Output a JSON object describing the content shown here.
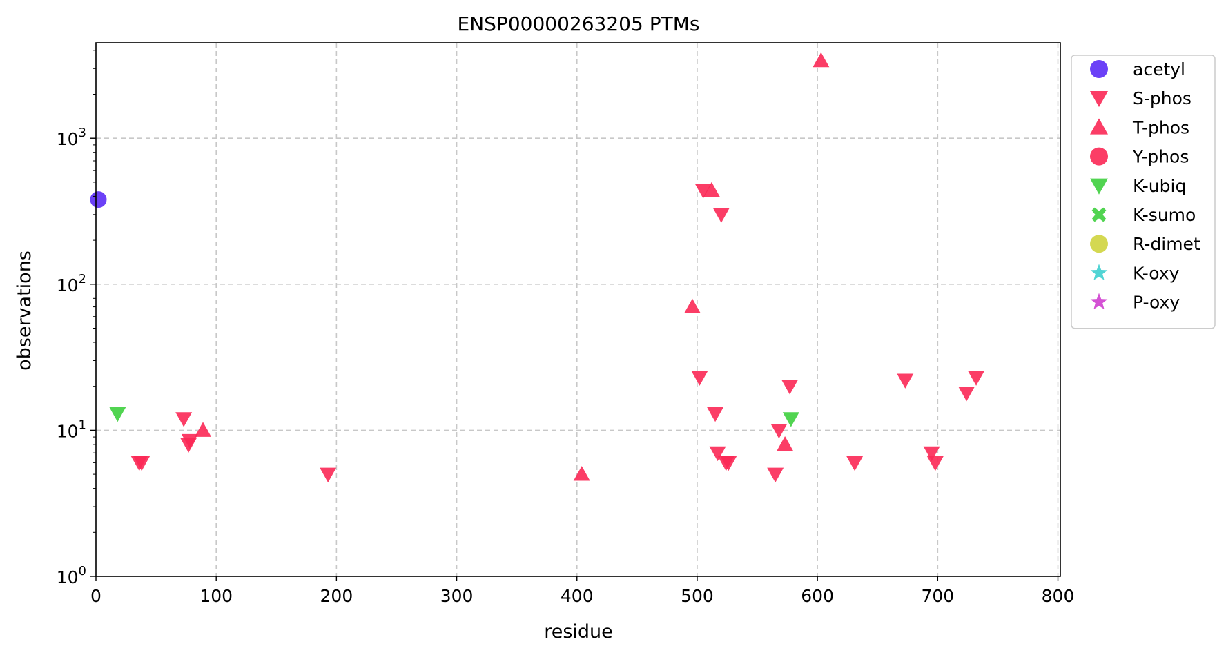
{
  "chart_data": {
    "type": "scatter",
    "title": "ENSP00000263205 PTMs",
    "xlabel": "residue",
    "ylabel": "observations",
    "xlim": [
      0,
      802
    ],
    "ylim": [
      1,
      4500
    ],
    "yscale": "log",
    "grid": true,
    "legend_position": "outside-right",
    "x_ticks": [
      0,
      100,
      200,
      300,
      400,
      500,
      600,
      700,
      800
    ],
    "x_tick_labels": [
      "0",
      "100",
      "200",
      "300",
      "400",
      "500",
      "600",
      "700",
      "800"
    ],
    "y_ticks": [
      1,
      10,
      100,
      1000
    ],
    "y_tick_base": "10",
    "y_tick_exponents": [
      "0",
      "1",
      "2",
      "3"
    ],
    "series": [
      {
        "name": "acetyl",
        "marker": "circle",
        "color": "#5b2cf6",
        "points": [
          [
            2,
            380
          ]
        ]
      },
      {
        "name": "S-phos",
        "marker": "triangle-down",
        "color": "#fb2855",
        "points": [
          [
            36,
            6
          ],
          [
            38,
            6
          ],
          [
            73,
            12
          ],
          [
            77,
            8
          ],
          [
            78,
            8.5
          ],
          [
            193,
            5
          ],
          [
            502,
            23
          ],
          [
            505,
            440
          ],
          [
            515,
            13
          ],
          [
            517,
            7
          ],
          [
            520,
            300
          ],
          [
            524,
            6
          ],
          [
            526,
            6
          ],
          [
            565,
            5
          ],
          [
            568,
            10
          ],
          [
            577,
            20
          ],
          [
            631,
            6
          ],
          [
            673,
            22
          ],
          [
            695,
            7
          ],
          [
            698,
            6
          ],
          [
            724,
            18
          ],
          [
            732,
            23
          ]
        ]
      },
      {
        "name": "T-phos",
        "marker": "triangle-up",
        "color": "#fb2855",
        "points": [
          [
            89,
            10
          ],
          [
            404,
            5
          ],
          [
            496,
            70
          ],
          [
            512,
            440
          ],
          [
            573,
            8
          ],
          [
            603,
            3400
          ]
        ]
      },
      {
        "name": "Y-phos",
        "marker": "circle",
        "color": "#fb2855",
        "points": []
      },
      {
        "name": "K-ubiq",
        "marker": "triangle-down",
        "color": "#3ecf3e",
        "points": [
          [
            18,
            13
          ],
          [
            578,
            12
          ]
        ]
      },
      {
        "name": "K-sumo",
        "marker": "x",
        "color": "#3ecf3e",
        "points": []
      },
      {
        "name": "R-dimet",
        "marker": "circle",
        "color": "#cfd43e",
        "points": []
      },
      {
        "name": "K-oxy",
        "marker": "star",
        "color": "#3ecfcf",
        "points": []
      },
      {
        "name": "P-oxy",
        "marker": "star",
        "color": "#cf3ecf",
        "points": []
      }
    ]
  }
}
